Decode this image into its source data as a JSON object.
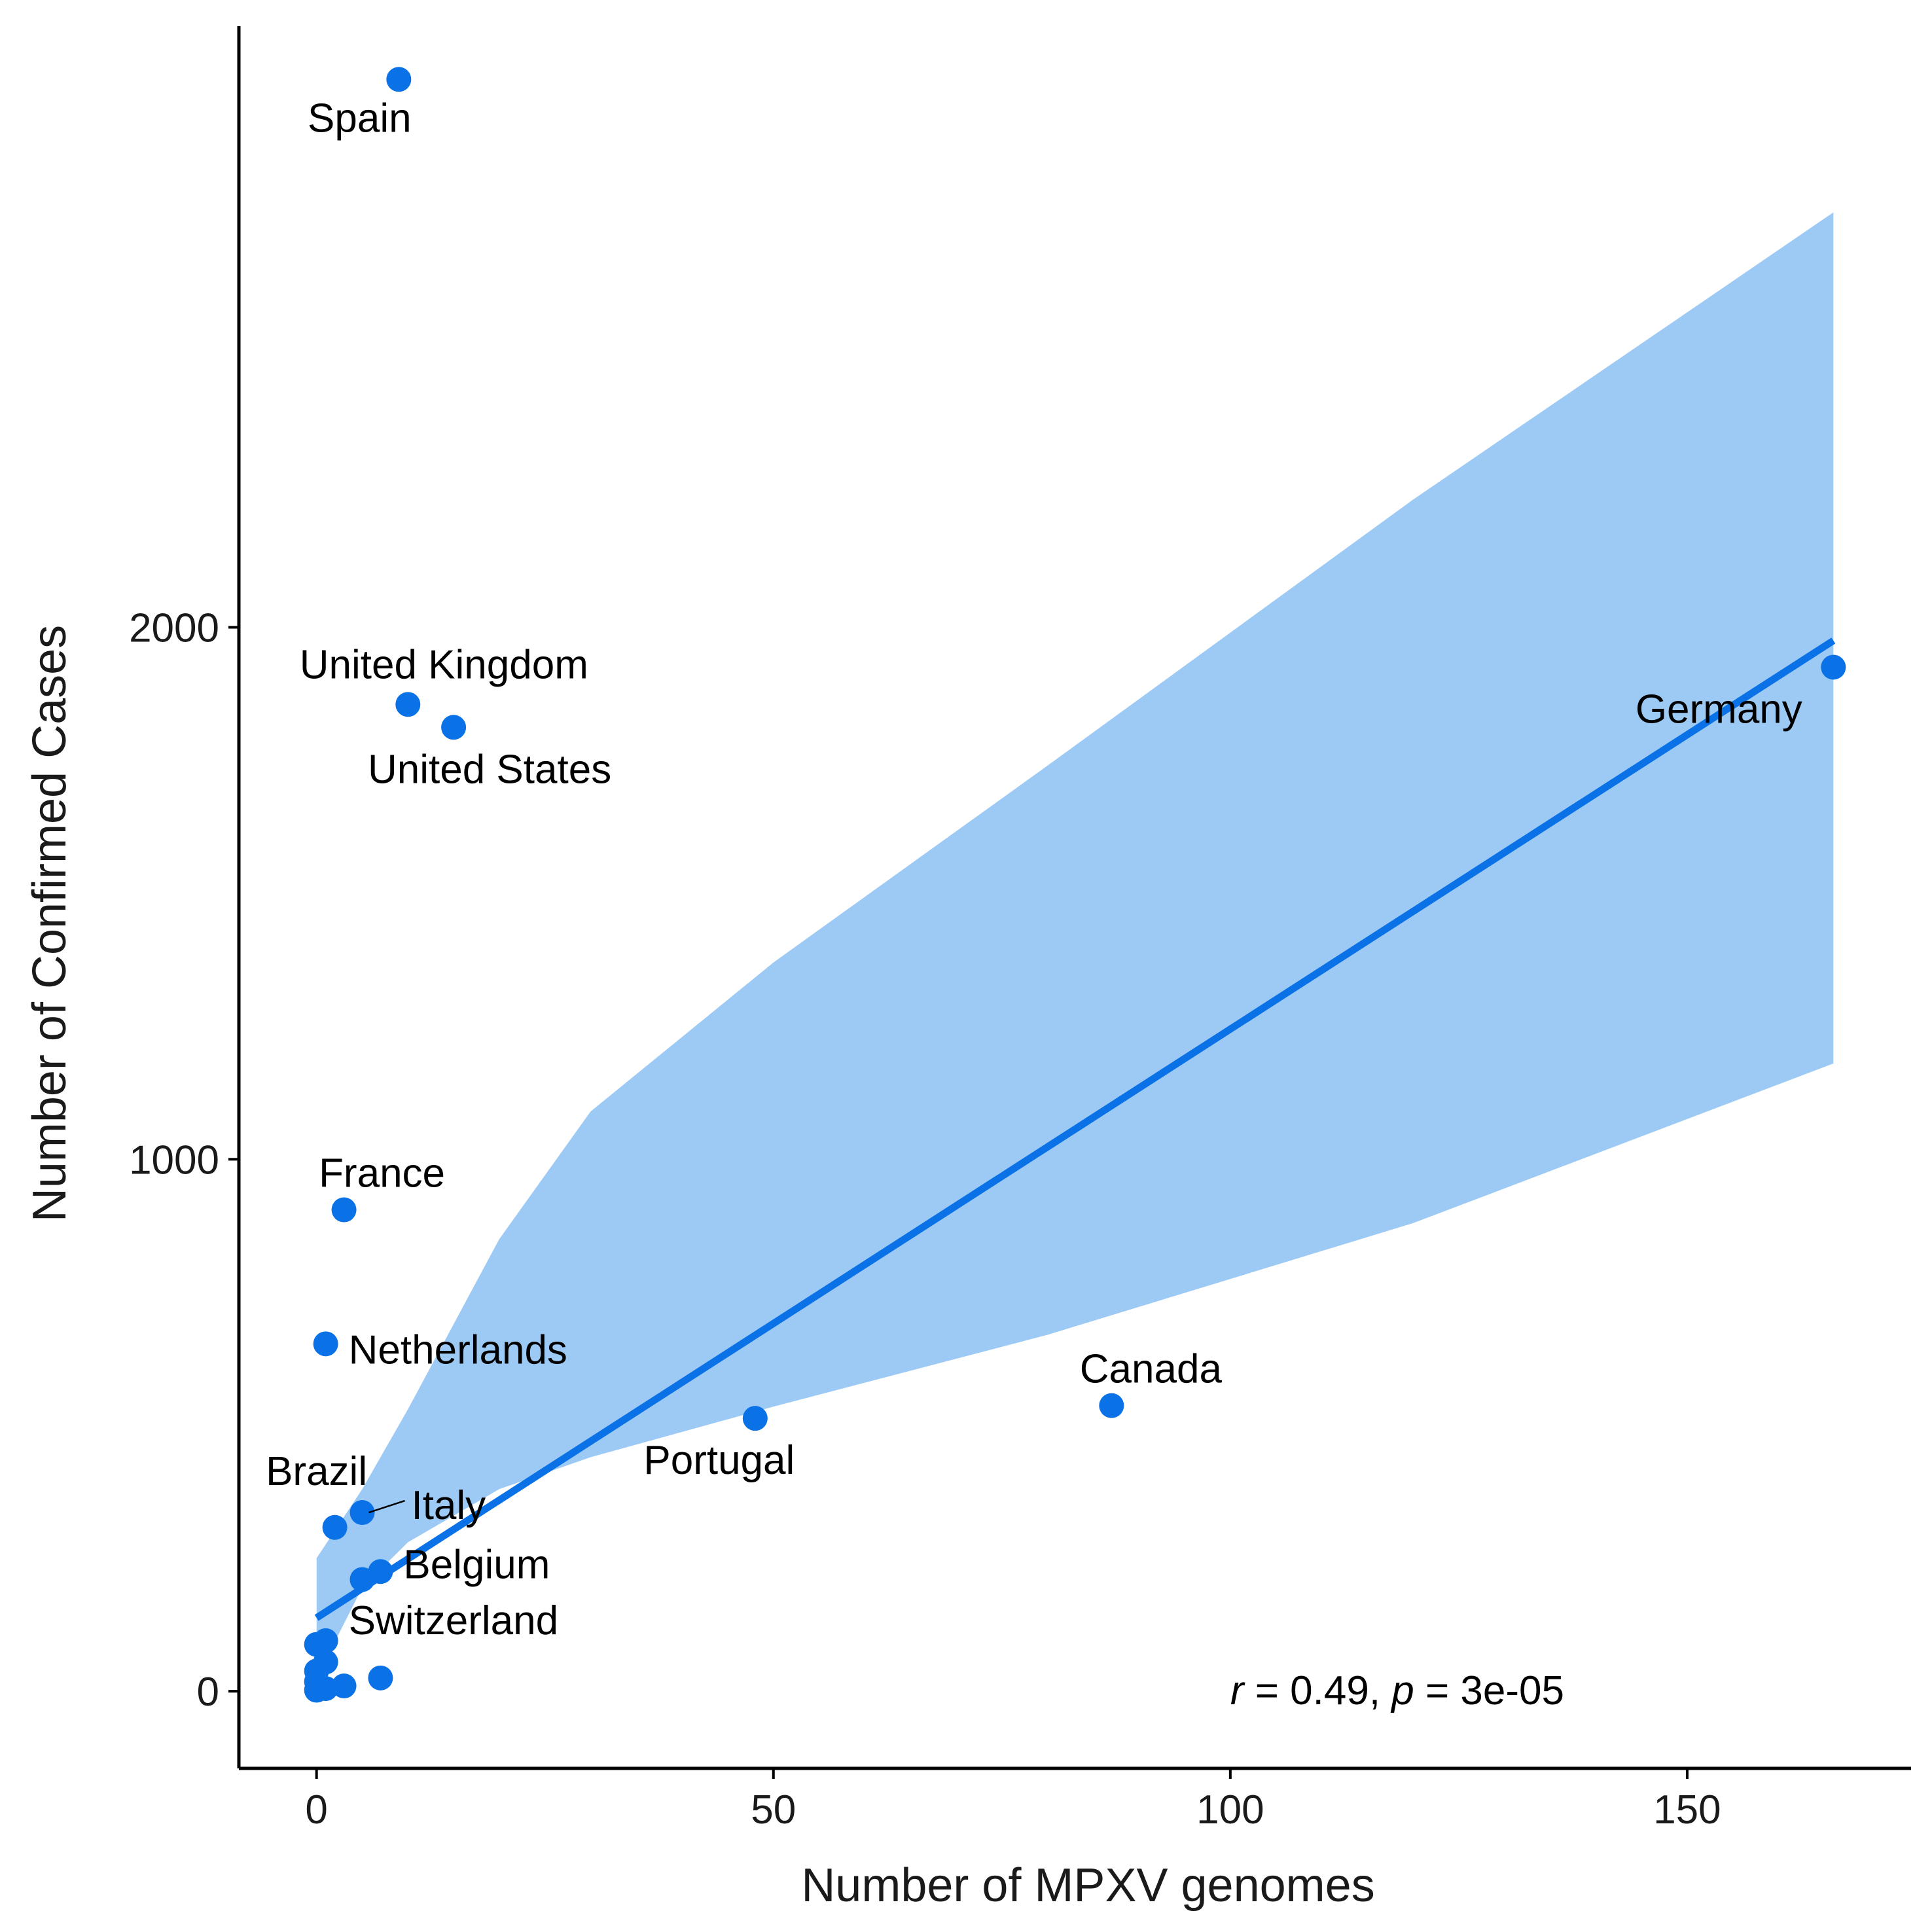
{
  "chart_data": {
    "type": "scatter",
    "xlabel": "Number of MPXV genomes",
    "ylabel": "Number of Confirmed Cases",
    "xlim": [
      -8.5,
      174.5
    ],
    "ylim": [
      -145,
      3130
    ],
    "x_ticks": [
      0,
      50,
      100,
      150
    ],
    "y_ticks": [
      0,
      1000,
      2000
    ],
    "grid": false,
    "colors": {
      "point": "#0a72e6",
      "line": "#0a72e6",
      "band": "#9dcaf5"
    },
    "points": [
      {
        "x": 9,
        "y": 3030,
        "label": "Spain"
      },
      {
        "x": 10,
        "y": 1855,
        "label": "United Kingdom"
      },
      {
        "x": 15,
        "y": 1812,
        "label": "United States"
      },
      {
        "x": 166,
        "y": 1925,
        "label": "Germany"
      },
      {
        "x": 3,
        "y": 905,
        "label": "France"
      },
      {
        "x": 1,
        "y": 653,
        "label": "Netherlands"
      },
      {
        "x": 87,
        "y": 537,
        "label": "Canada"
      },
      {
        "x": 48,
        "y": 513,
        "label": "Portugal"
      },
      {
        "x": 2,
        "y": 308,
        "label": "Brazil"
      },
      {
        "x": 5,
        "y": 336,
        "label": "Italy"
      },
      {
        "x": 7,
        "y": 225,
        "label": "Belgium"
      },
      {
        "x": 5,
        "y": 210,
        "label": ""
      },
      {
        "x": 1,
        "y": 95,
        "label": "Switzerland"
      },
      {
        "x": 0,
        "y": 88,
        "label": ""
      },
      {
        "x": 1,
        "y": 55,
        "label": ""
      },
      {
        "x": 0,
        "y": 38,
        "label": ""
      },
      {
        "x": 7,
        "y": 25,
        "label": ""
      },
      {
        "x": 0,
        "y": 18,
        "label": ""
      },
      {
        "x": 3,
        "y": 10,
        "label": ""
      },
      {
        "x": 1,
        "y": 5,
        "label": ""
      },
      {
        "x": 0,
        "y": 2,
        "label": ""
      }
    ],
    "regression": {
      "x": [
        0,
        166
      ],
      "y": [
        138,
        1975
      ]
    },
    "confidence_band": {
      "upper": [
        [
          0,
          250
        ],
        [
          5,
          380
        ],
        [
          10,
          530
        ],
        [
          20,
          850
        ],
        [
          30,
          1090
        ],
        [
          50,
          1370
        ],
        [
          80,
          1740
        ],
        [
          120,
          2240
        ],
        [
          166,
          2780
        ]
      ],
      "lower": [
        [
          0,
          25
        ],
        [
          5,
          195
        ],
        [
          10,
          280
        ],
        [
          20,
          380
        ],
        [
          30,
          440
        ],
        [
          50,
          535
        ],
        [
          80,
          670
        ],
        [
          120,
          880
        ],
        [
          166,
          1180
        ]
      ]
    },
    "annotation": {
      "r_symbol": "r",
      "r_text": " = 0.49, ",
      "p_symbol": "p",
      "p_text": " = 3e-05"
    }
  }
}
